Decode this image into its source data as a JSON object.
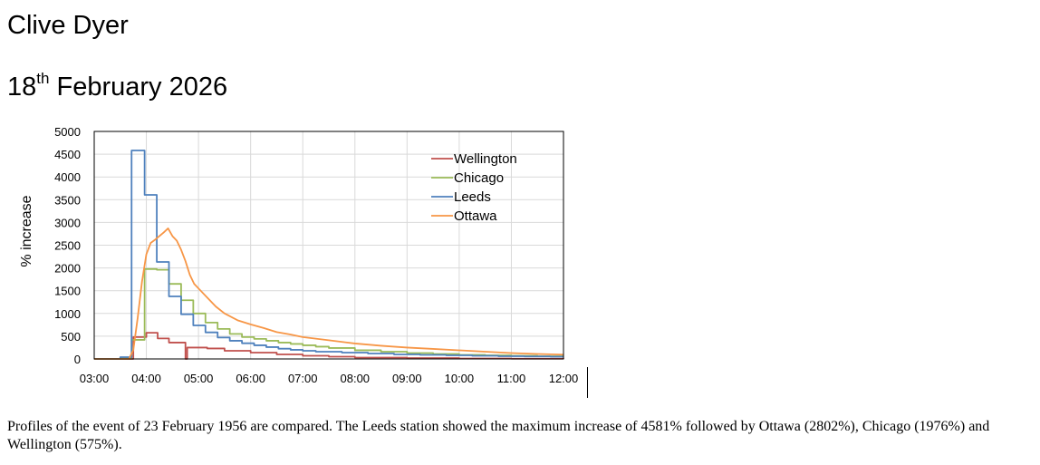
{
  "header": {
    "name": "Clive Dyer",
    "date_day": "18",
    "date_suffix": "th",
    "date_rest": " February 2026"
  },
  "caption": "Profiles of the event of 23 February 1956 are compared. The Leeds station showed the maximum increase of 4581% followed by Ottawa (2802%), Chicago (1976%) and Wellington (575%).",
  "chart_data": {
    "type": "line",
    "title": "",
    "xlabel": "",
    "ylabel": "% increase",
    "xlim": [
      "03:00",
      "12:00"
    ],
    "ylim": [
      0,
      5000
    ],
    "x_ticks": [
      "03:00",
      "04:00",
      "05:00",
      "06:00",
      "07:00",
      "08:00",
      "09:00",
      "10:00",
      "11:00",
      "12:00"
    ],
    "y_ticks": [
      0,
      500,
      1000,
      1500,
      2000,
      2500,
      3000,
      3500,
      4000,
      4500,
      5000
    ],
    "grid": true,
    "legend_position": "top-right",
    "series": [
      {
        "name": "Wellington",
        "color": "#c0504d",
        "step": true,
        "points": [
          [
            "03:00",
            0
          ],
          [
            "03:45",
            480
          ],
          [
            "04:00",
            575
          ],
          [
            "04:13",
            450
          ],
          [
            "04:26",
            360
          ],
          [
            "04:45",
            0
          ],
          [
            "04:47",
            250
          ],
          [
            "05:10",
            230
          ],
          [
            "05:30",
            180
          ],
          [
            "06:00",
            140
          ],
          [
            "06:30",
            100
          ],
          [
            "07:00",
            70
          ],
          [
            "07:30",
            50
          ],
          [
            "08:00",
            30
          ],
          [
            "09:00",
            20
          ],
          [
            "10:00",
            10
          ],
          [
            "11:00",
            5
          ],
          [
            "12:00",
            0
          ]
        ]
      },
      {
        "name": "Chicago",
        "color": "#9bbb59",
        "step": true,
        "points": [
          [
            "03:00",
            0
          ],
          [
            "03:30",
            30
          ],
          [
            "03:43",
            420
          ],
          [
            "03:58",
            1976
          ],
          [
            "04:12",
            1960
          ],
          [
            "04:26",
            1650
          ],
          [
            "04:40",
            1290
          ],
          [
            "04:54",
            1000
          ],
          [
            "05:08",
            800
          ],
          [
            "05:22",
            660
          ],
          [
            "05:36",
            550
          ],
          [
            "05:50",
            480
          ],
          [
            "06:04",
            440
          ],
          [
            "06:18",
            400
          ],
          [
            "06:32",
            360
          ],
          [
            "06:46",
            330
          ],
          [
            "07:00",
            300
          ],
          [
            "07:15",
            270
          ],
          [
            "07:30",
            240
          ],
          [
            "08:00",
            190
          ],
          [
            "08:30",
            160
          ],
          [
            "09:00",
            130
          ],
          [
            "09:30",
            110
          ],
          [
            "10:00",
            90
          ],
          [
            "10:30",
            80
          ],
          [
            "11:00",
            70
          ],
          [
            "11:30",
            60
          ],
          [
            "12:00",
            60
          ]
        ]
      },
      {
        "name": "Leeds",
        "color": "#4f81bd",
        "step": true,
        "points": [
          [
            "03:00",
            0
          ],
          [
            "03:30",
            40
          ],
          [
            "03:43",
            4581
          ],
          [
            "03:58",
            3606
          ],
          [
            "04:12",
            2131
          ],
          [
            "04:26",
            1375
          ],
          [
            "04:40",
            982
          ],
          [
            "04:54",
            737
          ],
          [
            "05:08",
            584
          ],
          [
            "05:22",
            470
          ],
          [
            "05:36",
            400
          ],
          [
            "05:50",
            345
          ],
          [
            "06:04",
            300
          ],
          [
            "06:18",
            260
          ],
          [
            "06:32",
            225
          ],
          [
            "06:46",
            200
          ],
          [
            "07:00",
            180
          ],
          [
            "07:15",
            160
          ],
          [
            "07:45",
            140
          ],
          [
            "08:15",
            120
          ],
          [
            "08:45",
            100
          ],
          [
            "09:15",
            90
          ],
          [
            "09:45",
            80
          ],
          [
            "10:15",
            70
          ],
          [
            "10:45",
            60
          ],
          [
            "11:15",
            55
          ],
          [
            "11:45",
            50
          ],
          [
            "12:00",
            50
          ]
        ]
      },
      {
        "name": "Ottawa",
        "color": "#f79646",
        "step": false,
        "points": [
          [
            "03:00",
            0
          ],
          [
            "03:40",
            0
          ],
          [
            "03:45",
            200
          ],
          [
            "03:50",
            900
          ],
          [
            "03:55",
            1700
          ],
          [
            "04:00",
            2300
          ],
          [
            "04:05",
            2550
          ],
          [
            "04:10",
            2620
          ],
          [
            "04:15",
            2700
          ],
          [
            "04:20",
            2780
          ],
          [
            "04:25",
            2870
          ],
          [
            "04:30",
            2700
          ],
          [
            "04:35",
            2600
          ],
          [
            "04:40",
            2400
          ],
          [
            "04:45",
            2150
          ],
          [
            "04:50",
            1850
          ],
          [
            "04:55",
            1650
          ],
          [
            "05:00",
            1550
          ],
          [
            "05:10",
            1350
          ],
          [
            "05:20",
            1150
          ],
          [
            "05:30",
            1000
          ],
          [
            "05:45",
            850
          ],
          [
            "06:00",
            760
          ],
          [
            "06:15",
            680
          ],
          [
            "06:30",
            590
          ],
          [
            "06:45",
            540
          ],
          [
            "07:00",
            480
          ],
          [
            "07:30",
            410
          ],
          [
            "08:00",
            340
          ],
          [
            "08:30",
            290
          ],
          [
            "09:00",
            250
          ],
          [
            "09:30",
            220
          ],
          [
            "10:00",
            190
          ],
          [
            "10:30",
            160
          ],
          [
            "11:00",
            130
          ],
          [
            "11:30",
            110
          ],
          [
            "12:00",
            95
          ]
        ]
      }
    ]
  }
}
